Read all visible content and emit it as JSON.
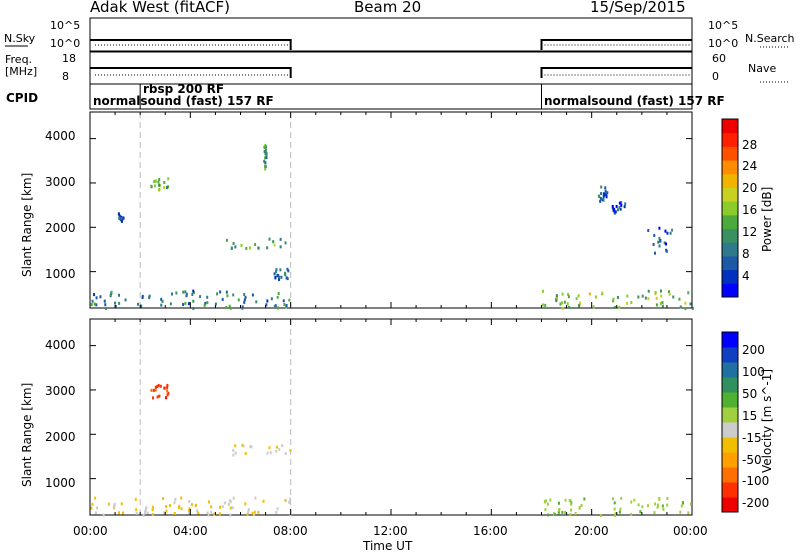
{
  "header": {
    "radar": "Adak West (fitACF)",
    "beam": "Beam 20",
    "date": "15/Sep/2015"
  },
  "panels": {
    "nsky_label": "N.Sky",
    "nsky_ticks": [
      "10^5",
      "10^0"
    ],
    "nsearch_label": "N.Search",
    "nsearch_ticks": [
      "10^5",
      "10^0"
    ],
    "freq_label_line1": "Freq.",
    "freq_label_line2": "[MHz]",
    "freq_ticks": [
      "18",
      "8"
    ],
    "nave_label": "Nave",
    "nave_ticks": [
      "60",
      "0"
    ],
    "cpid_label": "CPID",
    "cpid_segments": [
      {
        "label": "normalsound (fast) 157 RF",
        "start_hr": 0,
        "end_hr": 2
      },
      {
        "label": "rbsp 200 RF",
        "start_hr": 2,
        "end_hr": 8
      },
      {
        "label": "normalsound (fast) 157 RF",
        "start_hr": 18,
        "end_hr": 24
      }
    ]
  },
  "axes": {
    "ylabel": "Slant Range [km]",
    "xlabel": "Time UT",
    "xticks": [
      "00:00",
      "04:00",
      "08:00",
      "12:00",
      "16:00",
      "20:00",
      "00:00"
    ],
    "yticks": [
      "4000",
      "3000",
      "2000",
      "1000"
    ]
  },
  "colorbars": {
    "power": {
      "label": "Power [dB]",
      "ticks": [
        "28",
        "24",
        "20",
        "16",
        "12",
        "8",
        "4"
      ],
      "colors": [
        "#0000ff",
        "#0030c0",
        "#1c5aa8",
        "#2e7a8c",
        "#3a9060",
        "#4caa3c",
        "#8ccc2a",
        "#c8d020",
        "#f0b400",
        "#ff8c00",
        "#ff5000",
        "#ff2000",
        "#ee0000"
      ]
    },
    "velocity": {
      "label": "Velocity [m s^-1]",
      "ticks": [
        "200",
        "100",
        "50",
        "15",
        "-15",
        "-50",
        "-100",
        "-200"
      ],
      "colors": [
        "#ee0000",
        "#ff3000",
        "#ff7000",
        "#ffa000",
        "#f0c000",
        "#cccccc",
        "#a0d040",
        "#50b030",
        "#309060",
        "#2070a0",
        "#1040c0",
        "#0000ff"
      ]
    }
  },
  "chart_data": {
    "type": "heatmap",
    "title": "Adak West (fitACF)  Beam 20  15/Sep/2015",
    "xlabel": "Time UT",
    "ylabel": "Slant Range [km]",
    "xlim_hours": [
      0,
      24
    ],
    "ylim_km": [
      180,
      4600
    ],
    "data_gap_hours": [
      8,
      18
    ],
    "power_scatter_features": [
      {
        "t_start": 1.1,
        "t_end": 1.3,
        "range_start": 2150,
        "range_end": 2350,
        "power_db": 6
      },
      {
        "t_start": 2.4,
        "t_end": 3.1,
        "range_start": 2850,
        "range_end": 3150,
        "power_db": 12
      },
      {
        "t_start": 5.4,
        "t_end": 8.0,
        "range_start": 1550,
        "range_end": 1800,
        "power_db": 12
      },
      {
        "t_start": 6.9,
        "t_end": 7.0,
        "range_start": 3300,
        "range_end": 3900,
        "power_db": 10
      },
      {
        "t_start": 7.3,
        "t_end": 7.9,
        "range_start": 850,
        "range_end": 1100,
        "power_db": 6
      },
      {
        "t_start": 20.2,
        "t_end": 20.6,
        "range_start": 2600,
        "range_end": 2950,
        "power_db": 6
      },
      {
        "t_start": 20.8,
        "t_end": 21.3,
        "range_start": 2350,
        "range_end": 2600,
        "power_db": 5
      },
      {
        "t_start": 22.2,
        "t_end": 23.2,
        "range_start": 1450,
        "range_end": 2100,
        "power_db": 5
      },
      {
        "t_start": 18.0,
        "t_end": 24.0,
        "range_start": 200,
        "range_end": 600,
        "power_db": 14
      },
      {
        "t_start": 0.0,
        "t_end": 8.0,
        "range_start": 200,
        "range_end": 600,
        "power_db": 8
      }
    ],
    "velocity_scatter_features": [
      {
        "t_start": 2.4,
        "t_end": 3.1,
        "range_start": 2850,
        "range_end": 3150,
        "velocity": -200
      },
      {
        "t_start": 5.4,
        "t_end": 8.0,
        "range_start": 1550,
        "range_end": 1800,
        "velocity": -30
      },
      {
        "t_start": 18.0,
        "t_end": 24.0,
        "range_start": 200,
        "range_end": 600,
        "velocity": 30
      },
      {
        "t_start": 0.0,
        "t_end": 8.0,
        "range_start": 200,
        "range_end": 600,
        "velocity": -40
      }
    ]
  }
}
